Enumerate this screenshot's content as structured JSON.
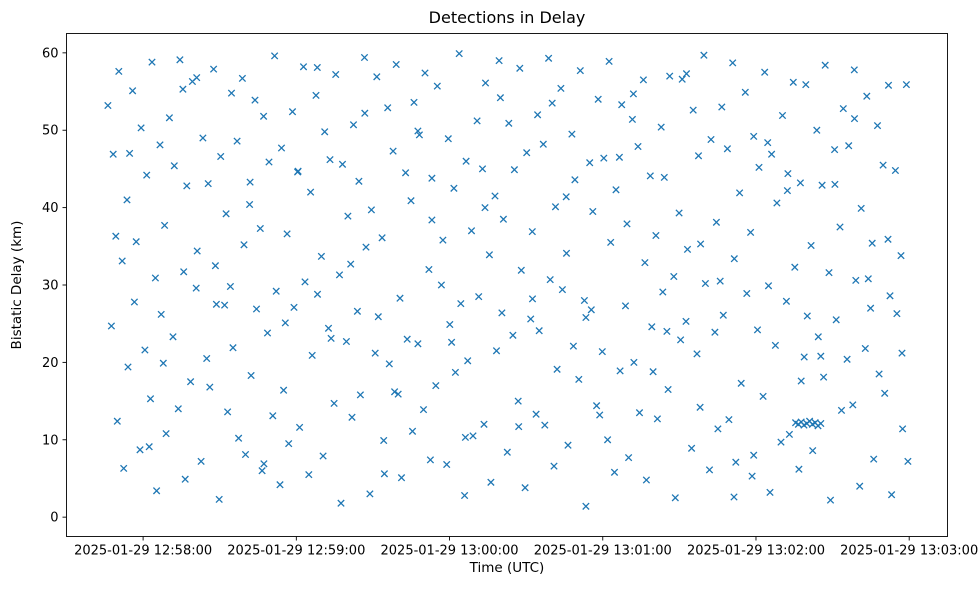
{
  "chart_data": {
    "type": "scatter",
    "title": "Detections in Delay",
    "xlabel": "Time (UTC)",
    "ylabel": "Bistatic Delay (km)",
    "marker": "x",
    "marker_color": "#1f77b4",
    "background_color": "#ffffff",
    "legend": "none",
    "grid": false,
    "t_zero_utc": "2025-01-29 12:57:30",
    "t_unit": "seconds",
    "x_domain": [
      0,
      345
    ],
    "y_domain": [
      -2.5,
      62.5
    ],
    "x_ticks": [
      30,
      90,
      150,
      210,
      270,
      330
    ],
    "x_tick_labels": [
      "2025-01-29 12:58:00",
      "2025-01-29 12:59:00",
      "2025-01-29 13:00:00",
      "2025-01-29 13:01:00",
      "2025-01-29 13:02:00",
      "2025-01-29 13:03:00"
    ],
    "y_ticks": [
      0,
      10,
      20,
      30,
      40,
      50,
      60
    ],
    "points": [
      [
        16.2,
        53.2
      ],
      [
        17.6,
        24.7
      ],
      [
        18.3,
        46.9
      ],
      [
        19.9,
        12.4
      ],
      [
        20.5,
        57.6
      ],
      [
        21.8,
        33.1
      ],
      [
        22.4,
        6.3
      ],
      [
        23.7,
        41.0
      ],
      [
        24.1,
        19.4
      ],
      [
        25.9,
        55.1
      ],
      [
        26.6,
        27.8
      ],
      [
        27.3,
        35.6
      ],
      [
        28.8,
        8.7
      ],
      [
        29.2,
        50.3
      ],
      [
        30.7,
        21.6
      ],
      [
        31.4,
        44.2
      ],
      [
        32.9,
        15.3
      ],
      [
        33.5,
        58.8
      ],
      [
        34.8,
        30.9
      ],
      [
        35.3,
        3.4
      ],
      [
        36.6,
        48.1
      ],
      [
        37.1,
        26.2
      ],
      [
        38.4,
        37.7
      ],
      [
        39.0,
        10.8
      ],
      [
        40.3,
        51.6
      ],
      [
        41.7,
        23.3
      ],
      [
        42.2,
        45.4
      ],
      [
        43.8,
        14.0
      ],
      [
        44.4,
        59.1
      ],
      [
        45.9,
        31.7
      ],
      [
        46.5,
        4.9
      ],
      [
        47.1,
        42.8
      ],
      [
        48.6,
        17.5
      ],
      [
        49.3,
        56.3
      ],
      [
        50.8,
        29.6
      ],
      [
        51.2,
        34.4
      ],
      [
        52.7,
        7.2
      ],
      [
        53.4,
        49.0
      ],
      [
        54.9,
        20.5
      ],
      [
        55.5,
        43.1
      ],
      [
        56.1,
        16.8
      ],
      [
        57.6,
        57.9
      ],
      [
        58.3,
        32.5
      ],
      [
        59.8,
        2.3
      ],
      [
        60.4,
        46.6
      ],
      [
        61.9,
        27.4
      ],
      [
        62.5,
        39.2
      ],
      [
        63.1,
        13.6
      ],
      [
        64.6,
        54.8
      ],
      [
        65.2,
        21.9
      ],
      [
        66.8,
        48.6
      ],
      [
        67.4,
        10.2
      ],
      [
        68.9,
        56.7
      ],
      [
        69.5,
        35.2
      ],
      [
        70.1,
        8.1
      ],
      [
        71.7,
        40.4
      ],
      [
        72.3,
        18.3
      ],
      [
        73.8,
        53.9
      ],
      [
        74.4,
        26.9
      ],
      [
        75.9,
        37.3
      ],
      [
        76.6,
        6.0
      ],
      [
        77.2,
        51.8
      ],
      [
        78.7,
        23.8
      ],
      [
        79.3,
        45.9
      ],
      [
        80.8,
        13.1
      ],
      [
        81.5,
        59.6
      ],
      [
        82.1,
        29.2
      ],
      [
        83.6,
        4.2
      ],
      [
        84.2,
        47.7
      ],
      [
        85.7,
        25.1
      ],
      [
        86.4,
        36.6
      ],
      [
        87.0,
        9.5
      ],
      [
        88.5,
        52.4
      ],
      [
        89.1,
        27.1
      ],
      [
        90.7,
        44.7
      ],
      [
        91.3,
        11.6
      ],
      [
        92.8,
        58.2
      ],
      [
        93.4,
        30.4
      ],
      [
        94.9,
        5.5
      ],
      [
        95.6,
        42.0
      ],
      [
        96.2,
        20.9
      ],
      [
        97.7,
        54.5
      ],
      [
        98.3,
        28.8
      ],
      [
        99.8,
        33.7
      ],
      [
        100.5,
        7.9
      ],
      [
        101.1,
        49.8
      ],
      [
        102.6,
        24.4
      ],
      [
        103.2,
        46.2
      ],
      [
        104.8,
        14.7
      ],
      [
        105.4,
        57.2
      ],
      [
        106.9,
        31.3
      ],
      [
        107.5,
        1.8
      ],
      [
        108.1,
        45.6
      ],
      [
        109.6,
        22.7
      ],
      [
        110.2,
        38.9
      ],
      [
        111.8,
        12.9
      ],
      [
        112.4,
        50.7
      ],
      [
        113.9,
        26.6
      ],
      [
        114.5,
        43.4
      ],
      [
        115.1,
        15.8
      ],
      [
        116.7,
        59.4
      ],
      [
        117.3,
        34.9
      ],
      [
        118.8,
        3.0
      ],
      [
        119.4,
        39.7
      ],
      [
        120.9,
        21.2
      ],
      [
        121.5,
        56.9
      ],
      [
        122.1,
        25.9
      ],
      [
        123.6,
        36.1
      ],
      [
        124.2,
        9.9
      ],
      [
        125.8,
        52.9
      ],
      [
        126.4,
        19.8
      ],
      [
        127.9,
        47.3
      ],
      [
        128.5,
        16.2
      ],
      [
        129.1,
        58.5
      ],
      [
        130.6,
        28.3
      ],
      [
        131.2,
        5.1
      ],
      [
        132.8,
        44.5
      ],
      [
        133.4,
        23.0
      ],
      [
        134.9,
        40.9
      ],
      [
        135.5,
        11.1
      ],
      [
        136.1,
        53.6
      ],
      [
        137.6,
        22.4
      ],
      [
        138.2,
        49.4
      ],
      [
        139.8,
        13.9
      ],
      [
        140.4,
        57.4
      ],
      [
        141.9,
        32.0
      ],
      [
        142.5,
        7.4
      ],
      [
        143.1,
        43.8
      ],
      [
        144.6,
        17.0
      ],
      [
        145.2,
        55.7
      ],
      [
        146.8,
        30.0
      ],
      [
        147.4,
        35.8
      ],
      [
        148.9,
        6.8
      ],
      [
        149.5,
        48.9
      ],
      [
        150.1,
        24.9
      ],
      [
        151.7,
        42.5
      ],
      [
        152.3,
        18.7
      ],
      [
        153.8,
        59.9
      ],
      [
        154.4,
        27.6
      ],
      [
        155.9,
        2.8
      ],
      [
        156.5,
        46.0
      ],
      [
        157.1,
        20.2
      ],
      [
        158.6,
        37.0
      ],
      [
        159.2,
        10.5
      ],
      [
        160.8,
        51.2
      ],
      [
        161.4,
        28.5
      ],
      [
        162.9,
        45.0
      ],
      [
        163.5,
        12.0
      ],
      [
        164.1,
        56.1
      ],
      [
        165.6,
        33.9
      ],
      [
        166.2,
        4.5
      ],
      [
        167.8,
        41.5
      ],
      [
        168.4,
        21.5
      ],
      [
        169.9,
        54.2
      ],
      [
        170.5,
        26.4
      ],
      [
        171.1,
        38.5
      ],
      [
        172.6,
        8.4
      ],
      [
        173.2,
        50.9
      ],
      [
        174.8,
        23.5
      ],
      [
        175.4,
        44.9
      ],
      [
        176.9,
        15.0
      ],
      [
        177.5,
        58.0
      ],
      [
        178.1,
        31.9
      ],
      [
        179.6,
        3.8
      ],
      [
        180.2,
        47.1
      ],
      [
        181.8,
        25.6
      ],
      [
        182.4,
        36.9
      ],
      [
        183.9,
        13.3
      ],
      [
        184.5,
        52.0
      ],
      [
        185.1,
        24.1
      ],
      [
        186.7,
        48.2
      ],
      [
        187.3,
        11.9
      ],
      [
        188.8,
        59.3
      ],
      [
        189.4,
        30.7
      ],
      [
        190.9,
        6.6
      ],
      [
        191.5,
        40.1
      ],
      [
        192.1,
        19.1
      ],
      [
        193.6,
        55.4
      ],
      [
        194.2,
        29.4
      ],
      [
        195.8,
        34.1
      ],
      [
        196.4,
        9.3
      ],
      [
        197.9,
        49.5
      ],
      [
        198.5,
        22.1
      ],
      [
        199.1,
        43.6
      ],
      [
        200.6,
        17.8
      ],
      [
        201.2,
        57.7
      ],
      [
        202.8,
        28.0
      ],
      [
        203.4,
        1.4
      ],
      [
        204.9,
        45.8
      ],
      [
        205.5,
        26.8
      ],
      [
        206.1,
        39.5
      ],
      [
        207.6,
        14.4
      ],
      [
        208.2,
        54.0
      ],
      [
        209.8,
        21.4
      ],
      [
        210.4,
        46.4
      ],
      [
        211.9,
        10.0
      ],
      [
        212.5,
        58.9
      ],
      [
        213.1,
        35.5
      ],
      [
        214.6,
        5.8
      ],
      [
        215.2,
        42.3
      ],
      [
        216.8,
        18.9
      ],
      [
        217.4,
        53.3
      ],
      [
        218.9,
        27.3
      ],
      [
        219.5,
        37.9
      ],
      [
        220.1,
        7.7
      ],
      [
        221.6,
        51.4
      ],
      [
        222.2,
        20.0
      ],
      [
        223.8,
        47.9
      ],
      [
        224.4,
        13.5
      ],
      [
        225.9,
        56.5
      ],
      [
        226.5,
        32.9
      ],
      [
        227.1,
        4.8
      ],
      [
        228.6,
        44.1
      ],
      [
        229.2,
        24.6
      ],
      [
        230.8,
        36.4
      ],
      [
        231.4,
        12.7
      ],
      [
        232.9,
        50.4
      ],
      [
        233.5,
        29.1
      ],
      [
        234.1,
        43.9
      ],
      [
        235.6,
        16.5
      ],
      [
        236.2,
        57.0
      ],
      [
        237.8,
        31.1
      ],
      [
        238.4,
        2.5
      ],
      [
        239.9,
        39.3
      ],
      [
        240.5,
        22.9
      ],
      [
        241.1,
        56.6
      ],
      [
        242.6,
        25.3
      ],
      [
        243.2,
        34.6
      ],
      [
        244.8,
        8.9
      ],
      [
        245.4,
        52.6
      ],
      [
        246.9,
        21.1
      ],
      [
        247.5,
        46.7
      ],
      [
        248.1,
        14.2
      ],
      [
        249.6,
        59.7
      ],
      [
        250.2,
        30.2
      ],
      [
        251.8,
        6.1
      ],
      [
        252.4,
        48.8
      ],
      [
        253.9,
        23.9
      ],
      [
        254.5,
        38.1
      ],
      [
        255.1,
        11.4
      ],
      [
        256.6,
        53.0
      ],
      [
        257.2,
        26.1
      ],
      [
        258.8,
        47.6
      ],
      [
        259.4,
        12.6
      ],
      [
        260.9,
        58.7
      ],
      [
        261.5,
        33.4
      ],
      [
        262.1,
        7.1
      ],
      [
        263.6,
        41.9
      ],
      [
        264.2,
        17.3
      ],
      [
        265.8,
        54.9
      ],
      [
        266.4,
        28.9
      ],
      [
        267.9,
        36.8
      ],
      [
        268.5,
        5.3
      ],
      [
        269.1,
        49.2
      ],
      [
        270.6,
        24.2
      ],
      [
        271.2,
        45.2
      ],
      [
        272.8,
        15.6
      ],
      [
        273.4,
        57.5
      ],
      [
        274.9,
        29.9
      ],
      [
        275.5,
        3.2
      ],
      [
        276.1,
        46.9
      ],
      [
        277.6,
        22.2
      ],
      [
        278.2,
        40.6
      ],
      [
        279.8,
        9.7
      ],
      [
        280.4,
        51.9
      ],
      [
        281.9,
        27.9
      ],
      [
        282.5,
        44.4
      ],
      [
        283.1,
        10.7
      ],
      [
        284.6,
        56.2
      ],
      [
        285.2,
        32.3
      ],
      [
        286.8,
        6.2
      ],
      [
        287.4,
        43.2
      ],
      [
        288.9,
        20.7
      ],
      [
        289.5,
        55.9
      ],
      [
        290.1,
        26.0
      ],
      [
        291.6,
        35.1
      ],
      [
        292.2,
        8.6
      ],
      [
        293.8,
        50.0
      ],
      [
        294.4,
        23.3
      ],
      [
        295.9,
        42.9
      ],
      [
        296.5,
        18.1
      ],
      [
        297.1,
        58.4
      ],
      [
        298.6,
        31.6
      ],
      [
        299.2,
        2.2
      ],
      [
        300.8,
        47.5
      ],
      [
        301.4,
        25.5
      ],
      [
        302.9,
        37.5
      ],
      [
        303.5,
        13.8
      ],
      [
        285.5,
        12.2
      ],
      [
        286.6,
        12.0
      ],
      [
        287.7,
        12.3
      ],
      [
        288.8,
        11.9
      ],
      [
        289.9,
        12.1
      ],
      [
        291.0,
        12.4
      ],
      [
        292.1,
        12.0
      ],
      [
        293.2,
        12.2
      ],
      [
        294.3,
        11.8
      ],
      [
        295.4,
        12.1
      ],
      [
        304.2,
        52.8
      ],
      [
        305.7,
        20.4
      ],
      [
        306.3,
        48.0
      ],
      [
        307.9,
        14.5
      ],
      [
        308.5,
        57.8
      ],
      [
        309.1,
        30.6
      ],
      [
        310.6,
        4.0
      ],
      [
        311.2,
        39.9
      ],
      [
        312.8,
        21.8
      ],
      [
        313.4,
        54.4
      ],
      [
        314.9,
        27.0
      ],
      [
        315.5,
        35.4
      ],
      [
        316.1,
        7.5
      ],
      [
        317.6,
        50.6
      ],
      [
        318.2,
        18.5
      ],
      [
        319.8,
        45.5
      ],
      [
        320.4,
        16.0
      ],
      [
        321.9,
        55.8
      ],
      [
        322.5,
        28.6
      ],
      [
        323.1,
        2.9
      ],
      [
        324.6,
        44.8
      ],
      [
        325.2,
        26.3
      ],
      [
        326.8,
        33.8
      ],
      [
        327.4,
        11.4
      ],
      [
        328.9,
        55.9
      ],
      [
        329.5,
        7.2
      ],
      [
        19.3,
        36.3
      ],
      [
        32.4,
        9.1
      ],
      [
        45.6,
        55.3
      ],
      [
        58.7,
        27.5
      ],
      [
        71.9,
        43.3
      ],
      [
        85.0,
        16.4
      ],
      [
        98.2,
        58.1
      ],
      [
        111.3,
        32.7
      ],
      [
        124.5,
        5.6
      ],
      [
        137.6,
        49.9
      ],
      [
        150.8,
        22.6
      ],
      [
        163.9,
        40.0
      ],
      [
        177.1,
        11.7
      ],
      [
        190.2,
        53.5
      ],
      [
        203.4,
        25.8
      ],
      [
        216.5,
        46.5
      ],
      [
        229.7,
        18.8
      ],
      [
        242.8,
        57.3
      ],
      [
        256.0,
        30.5
      ],
      [
        269.1,
        8.0
      ],
      [
        282.3,
        42.2
      ],
      [
        295.4,
        20.8
      ],
      [
        308.6,
        51.5
      ],
      [
        321.7,
        35.9
      ],
      [
        24.7,
        47.0
      ],
      [
        37.9,
        19.9
      ],
      [
        51.0,
        56.8
      ],
      [
        64.2,
        29.8
      ],
      [
        77.3,
        6.9
      ],
      [
        90.5,
        44.6
      ],
      [
        103.6,
        23.1
      ],
      [
        116.8,
        52.2
      ],
      [
        129.9,
        15.9
      ],
      [
        143.1,
        38.4
      ],
      [
        156.2,
        10.3
      ],
      [
        169.4,
        59.0
      ],
      [
        182.5,
        28.2
      ],
      [
        195.7,
        41.4
      ],
      [
        208.8,
        13.2
      ],
      [
        222.0,
        54.7
      ],
      [
        235.1,
        24.0
      ],
      [
        248.3,
        35.3
      ],
      [
        261.4,
        2.6
      ],
      [
        274.6,
        48.4
      ],
      [
        287.7,
        17.6
      ],
      [
        300.9,
        43.0
      ],
      [
        314.0,
        30.8
      ],
      [
        327.2,
        21.2
      ]
    ]
  }
}
